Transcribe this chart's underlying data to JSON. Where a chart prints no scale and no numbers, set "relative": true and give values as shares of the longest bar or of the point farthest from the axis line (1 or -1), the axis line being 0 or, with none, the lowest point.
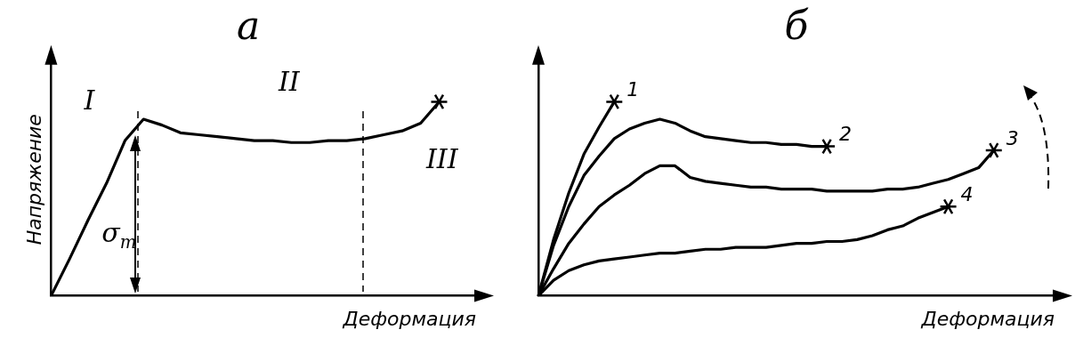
{
  "chart_data": [
    {
      "type": "line",
      "title": "а",
      "xlabel": "Деформация",
      "ylabel": "Напряжение",
      "relative": true,
      "tick_labels": false,
      "legend": false,
      "line_style": "solid",
      "marker": "none",
      "annotations": [
        "I",
        "II",
        "III",
        "σ$_{т}$"
      ],
      "categories": [
        null,
        null,
        null,
        null,
        null,
        null,
        null,
        null,
        null,
        null,
        null,
        null,
        null,
        null,
        null,
        null,
        null,
        null,
        null,
        null,
        null,
        null,
        null,
        null
      ],
      "series": [
        {
          "color": "#000000",
          "values": [
            0,
            0.19,
            0.39,
            0.58,
            0.8,
            0.91,
            0.88,
            0.84,
            0.83,
            0.82,
            0.81,
            0.8,
            0.8,
            0.79,
            0.79,
            0.8,
            0.8,
            0.81,
            0.83,
            0.85,
            0.89,
            1,
            null,
            null
          ]
        }
      ]
    },
    {
      "type": "line",
      "title": "б",
      "xlabel": "Деформация",
      "relative": true,
      "tick_labels": false,
      "legend": false,
      "line_style": "solid",
      "marker": "none",
      "categories": [
        null,
        null,
        null,
        null,
        null,
        null,
        null,
        null,
        null,
        null,
        null,
        null,
        null,
        null,
        null,
        null,
        null,
        null,
        null,
        null,
        null,
        null,
        null,
        null,
        null,
        null,
        null,
        null,
        null,
        null,
        null,
        null,
        null,
        null,
        null
      ],
      "series": [
        {
          "name": "1",
          "color": "#000000",
          "values": [
            0,
            0.29,
            0.53,
            0.73,
            0.87,
            1,
            null,
            null,
            null,
            null,
            null,
            null,
            null,
            null,
            null,
            null,
            null,
            null,
            null,
            null,
            null,
            null,
            null,
            null,
            null,
            null,
            null,
            null,
            null,
            null,
            null,
            null,
            null,
            null,
            null
          ]
        },
        {
          "name": "2",
          "color": "#000000",
          "values": [
            0,
            0.26,
            0.46,
            0.62,
            0.72,
            0.81,
            0.86,
            0.89,
            0.91,
            0.89,
            0.85,
            0.82,
            0.81,
            0.8,
            0.79,
            0.79,
            0.78,
            0.78,
            0.77,
            0.77,
            null,
            null,
            null,
            null,
            null,
            null,
            null,
            null,
            null,
            null,
            null,
            null,
            null,
            null,
            null
          ]
        },
        {
          "name": "3",
          "color": "#000000",
          "values": [
            0,
            0.14,
            0.27,
            0.37,
            0.46,
            0.52,
            0.57,
            0.63,
            0.67,
            0.67,
            0.61,
            0.59,
            0.58,
            0.57,
            0.56,
            0.56,
            0.55,
            0.55,
            0.55,
            0.54,
            0.54,
            0.54,
            0.54,
            0.55,
            0.55,
            0.56,
            0.58,
            0.6,
            0.63,
            0.66,
            0.75,
            null,
            null,
            null,
            null
          ]
        },
        {
          "name": "4",
          "color": "#000000",
          "values": [
            0,
            0.08,
            0.13,
            0.16,
            0.18,
            0.19,
            0.2,
            0.21,
            0.22,
            0.22,
            0.23,
            0.24,
            0.24,
            0.25,
            0.25,
            0.25,
            0.26,
            0.27,
            0.27,
            0.28,
            0.28,
            0.29,
            0.31,
            0.34,
            0.36,
            0.4,
            0.43,
            0.46,
            null,
            null,
            null,
            null,
            null,
            null,
            null
          ]
        }
      ]
    }
  ]
}
